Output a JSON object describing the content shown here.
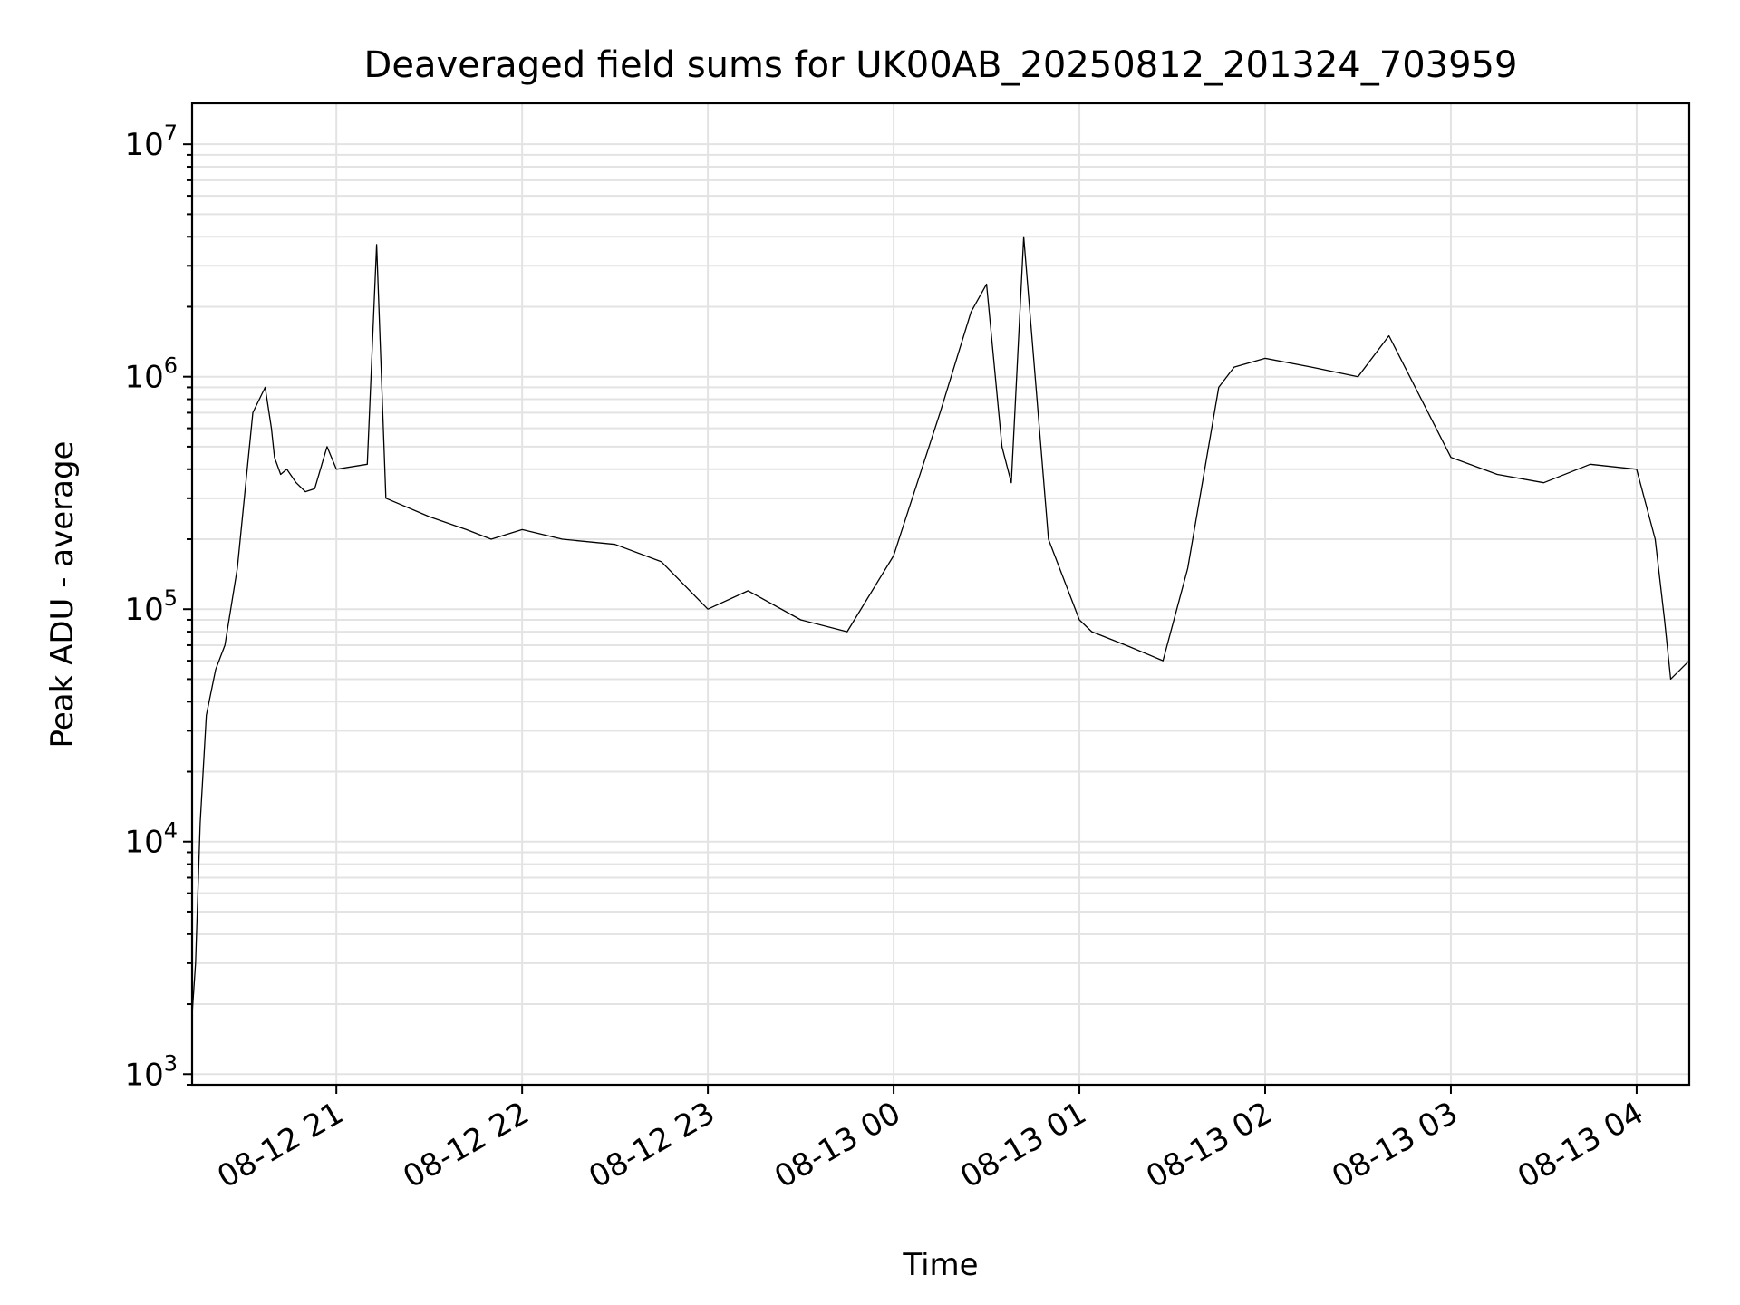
{
  "chart_data": {
    "type": "line",
    "title": "Deaveraged field sums for UK00AB_20250812_201324_703959",
    "xlabel": "Time",
    "ylabel": "Peak ADU - average",
    "yscale": "log",
    "ylim": [
      900,
      15000000
    ],
    "xlim": [
      "2025-08-12 20:13:24",
      "2025-08-13 04:17:00"
    ],
    "grid": true,
    "line_color": "#000000",
    "grid_color": "#e3e3e3",
    "y_ticks": [
      {
        "value": 1000,
        "base": "10",
        "exp": "3"
      },
      {
        "value": 10000,
        "base": "10",
        "exp": "4"
      },
      {
        "value": 100000,
        "base": "10",
        "exp": "5"
      },
      {
        "value": 1000000,
        "base": "10",
        "exp": "6"
      },
      {
        "value": 10000000,
        "base": "10",
        "exp": "7"
      }
    ],
    "x_ticks": [
      {
        "value": "2025-08-12 21:00:00",
        "label": "08-12 21"
      },
      {
        "value": "2025-08-12 22:00:00",
        "label": "08-12 22"
      },
      {
        "value": "2025-08-12 23:00:00",
        "label": "08-12 23"
      },
      {
        "value": "2025-08-13 00:00:00",
        "label": "08-13 00"
      },
      {
        "value": "2025-08-13 01:00:00",
        "label": "08-13 01"
      },
      {
        "value": "2025-08-13 02:00:00",
        "label": "08-13 02"
      },
      {
        "value": "2025-08-13 03:00:00",
        "label": "08-13 03"
      },
      {
        "value": "2025-08-13 04:00:00",
        "label": "08-13 04"
      }
    ],
    "series": [
      {
        "x": [
          "2025-08-12 20:13:24",
          "2025-08-12 20:14:30",
          "2025-08-12 20:16:00",
          "2025-08-12 20:18:00",
          "2025-08-12 20:21:00",
          "2025-08-12 20:24:00",
          "2025-08-12 20:28:00",
          "2025-08-12 20:33:00",
          "2025-08-12 20:37:00",
          "2025-08-12 20:39:00",
          "2025-08-12 20:40:00",
          "2025-08-12 20:42:00",
          "2025-08-12 20:44:00",
          "2025-08-12 20:47:00",
          "2025-08-12 20:50:00",
          "2025-08-12 20:53:00",
          "2025-08-12 20:57:00",
          "2025-08-12 21:00:00",
          "2025-08-12 21:10:00",
          "2025-08-12 21:13:00",
          "2025-08-12 21:16:00",
          "2025-08-12 21:30:00",
          "2025-08-12 21:42:00",
          "2025-08-12 21:50:00",
          "2025-08-12 22:00:00",
          "2025-08-12 22:13:00",
          "2025-08-12 22:30:00",
          "2025-08-12 22:45:00",
          "2025-08-12 23:00:00",
          "2025-08-12 23:13:00",
          "2025-08-12 23:30:00",
          "2025-08-12 23:45:00",
          "2025-08-13 00:00:00",
          "2025-08-13 00:15:00",
          "2025-08-13 00:25:00",
          "2025-08-13 00:30:00",
          "2025-08-13 00:35:00",
          "2025-08-13 00:38:00",
          "2025-08-13 00:42:00",
          "2025-08-13 00:50:00",
          "2025-08-13 01:00:00",
          "2025-08-13 01:04:00",
          "2025-08-13 01:15:00",
          "2025-08-13 01:27:00",
          "2025-08-13 01:35:00",
          "2025-08-13 01:45:00",
          "2025-08-13 01:50:00",
          "2025-08-13 02:00:00",
          "2025-08-13 02:15:00",
          "2025-08-13 02:30:00",
          "2025-08-13 02:40:00",
          "2025-08-13 03:00:00",
          "2025-08-13 03:15:00",
          "2025-08-13 03:30:00",
          "2025-08-13 03:45:00",
          "2025-08-13 04:00:00",
          "2025-08-13 04:06:00",
          "2025-08-13 04:09:00",
          "2025-08-13 04:11:00",
          "2025-08-13 04:17:00"
        ],
        "y": [
          1800,
          3000,
          12000,
          35000,
          55000,
          70000,
          150000,
          700000,
          900000,
          600000,
          450000,
          380000,
          400000,
          350000,
          320000,
          330000,
          500000,
          400000,
          420000,
          3700000,
          300000,
          250000,
          220000,
          200000,
          220000,
          200000,
          190000,
          160000,
          100000,
          120000,
          90000,
          80000,
          170000,
          700000,
          1900000,
          2500000,
          500000,
          350000,
          4000000,
          200000,
          90000,
          80000,
          70000,
          60000,
          150000,
          900000,
          1100000,
          1200000,
          1100000,
          1000000,
          1500000,
          450000,
          380000,
          350000,
          420000,
          400000,
          200000,
          90000,
          50000,
          60000
        ]
      }
    ]
  }
}
